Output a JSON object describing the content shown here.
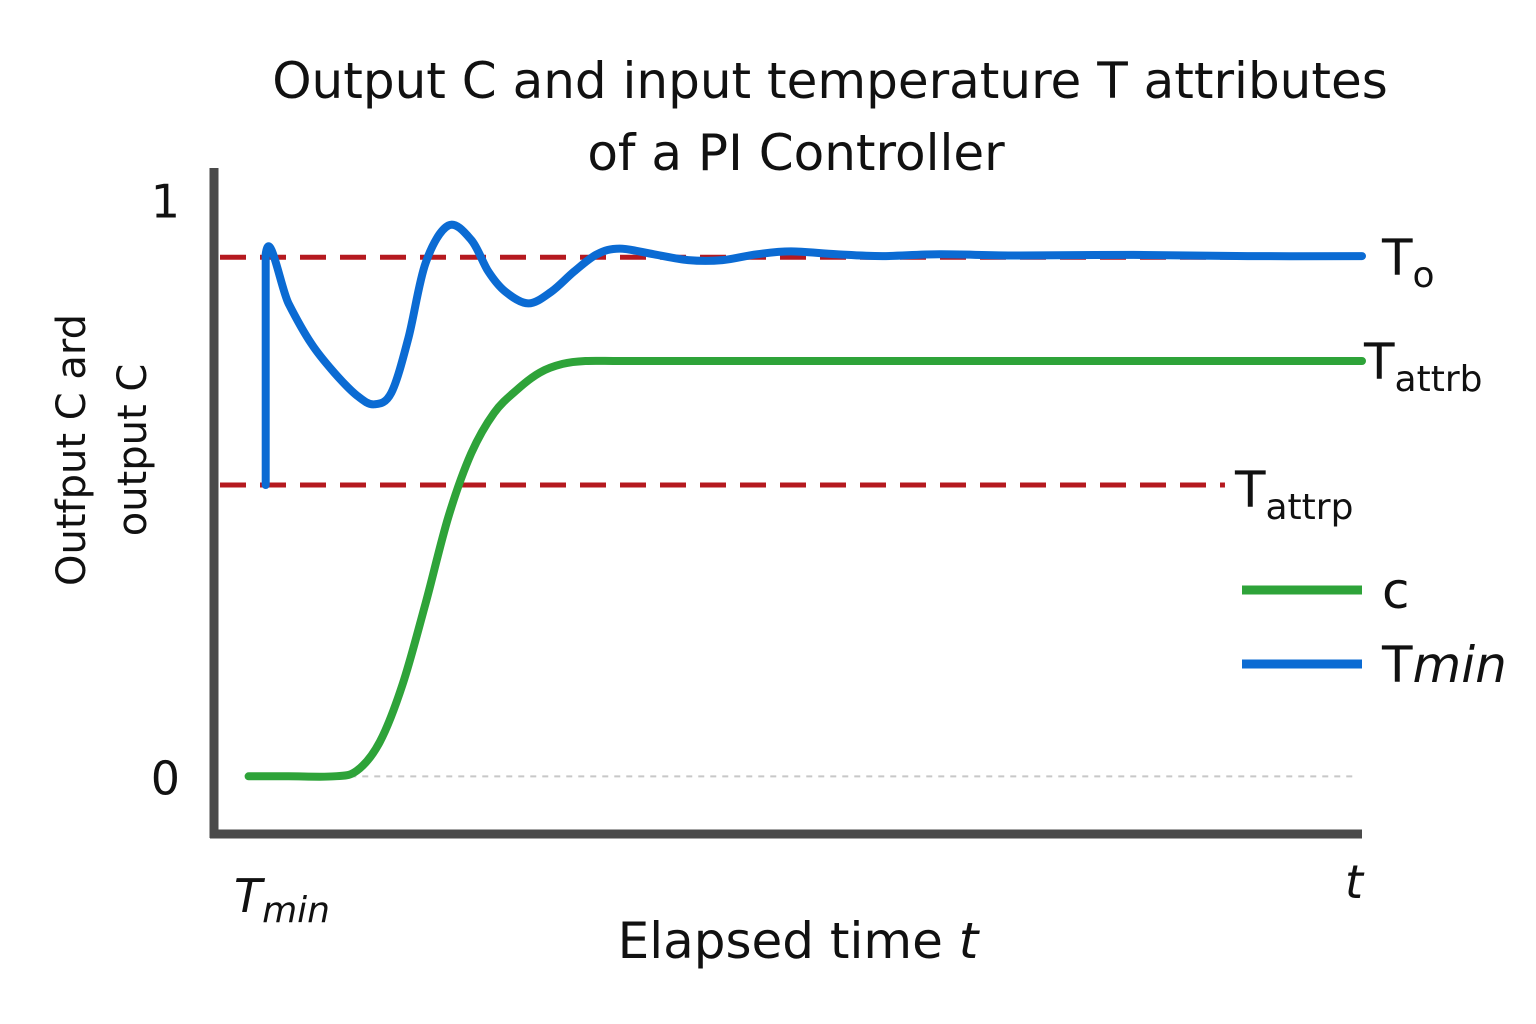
{
  "chart_data": {
    "type": "line",
    "title_lines": [
      "Output C and input temperature T attributes",
      "of a PI Controller"
    ],
    "ylabel_lines": [
      "Outfput C ard",
      "output C"
    ],
    "xlabel": {
      "text": "Elapsed time ",
      "var": "t"
    },
    "x_tick_left": {
      "base": "T",
      "sub": "min"
    },
    "x_tick_right": "t",
    "y_ticks": [
      {
        "value": 0,
        "label": "0"
      },
      {
        "value": 1,
        "label": "1"
      }
    ],
    "ylim": [
      -0.1,
      1.02
    ],
    "xlim": [
      0,
      10
    ],
    "grid": false,
    "reference_lines": [
      {
        "id": "t0",
        "value": 0.9,
        "x_end": 10.0,
        "base": "T",
        "sub": "o",
        "color": "#b5191f"
      },
      {
        "id": "tattrp",
        "value": 0.505,
        "x_end": 8.8,
        "base": "T",
        "sub": "attrp",
        "color": "#b5191f"
      }
    ],
    "attribute_labels": [
      {
        "id": "tattrb",
        "value": 0.72,
        "base": "T",
        "sub": "attrb"
      }
    ],
    "baseline": {
      "value": 0,
      "color": "#c8c8c8"
    },
    "series": [
      {
        "name": "c",
        "color": "#2ea339",
        "x": [
          0.25,
          0.6,
          1.0,
          1.2,
          1.4,
          1.6,
          1.8,
          2.0,
          2.2,
          2.4,
          2.6,
          2.8,
          3.0,
          3.2,
          3.5,
          4.0,
          5.0,
          7.0,
          10.0
        ],
        "y": [
          0.0,
          0.0,
          0.0,
          0.01,
          0.06,
          0.16,
          0.3,
          0.45,
          0.56,
          0.63,
          0.67,
          0.7,
          0.715,
          0.72,
          0.72,
          0.72,
          0.72,
          0.72,
          0.72
        ]
      },
      {
        "name": "Tmin",
        "color": "#0b6bd3",
        "x": [
          0.4,
          0.4,
          0.6,
          0.8,
          1.0,
          1.2,
          1.35,
          1.5,
          1.65,
          1.8,
          2.0,
          2.2,
          2.35,
          2.5,
          2.7,
          2.9,
          3.1,
          3.3,
          3.5,
          3.8,
          4.1,
          4.4,
          4.7,
          5.0,
          5.4,
          5.8,
          6.3,
          7.0,
          8.0,
          9.0,
          10.0
        ],
        "y": [
          0.505,
          0.905,
          0.82,
          0.75,
          0.7,
          0.66,
          0.645,
          0.665,
          0.76,
          0.89,
          0.955,
          0.93,
          0.875,
          0.84,
          0.82,
          0.84,
          0.875,
          0.905,
          0.915,
          0.905,
          0.895,
          0.895,
          0.905,
          0.91,
          0.905,
          0.902,
          0.905,
          0.903,
          0.904,
          0.902,
          0.902
        ]
      }
    ],
    "legend": {
      "placement": "right",
      "entries": [
        {
          "base": "c",
          "sub": "",
          "color": "#2ea339"
        },
        {
          "base": "T",
          "sub": "min",
          "color": "#0b6bd3"
        }
      ]
    }
  }
}
